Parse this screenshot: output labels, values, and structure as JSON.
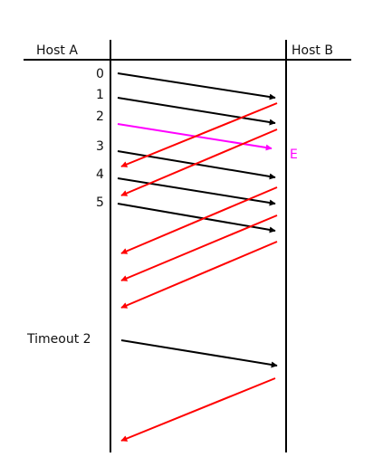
{
  "hosts": {
    "a_label": "Host A",
    "b_label": "Host B"
  },
  "packets": [
    "0",
    "1",
    "2",
    "3",
    "4",
    "5"
  ],
  "timeout_label": "Timeout 2",
  "error_label": "E",
  "colors": {
    "line": "#000000",
    "data_arrow": "#000000",
    "lost_arrow": "#ff00ff",
    "ack_arrow": "#ff0000",
    "error_label": "#ff00ff"
  }
}
